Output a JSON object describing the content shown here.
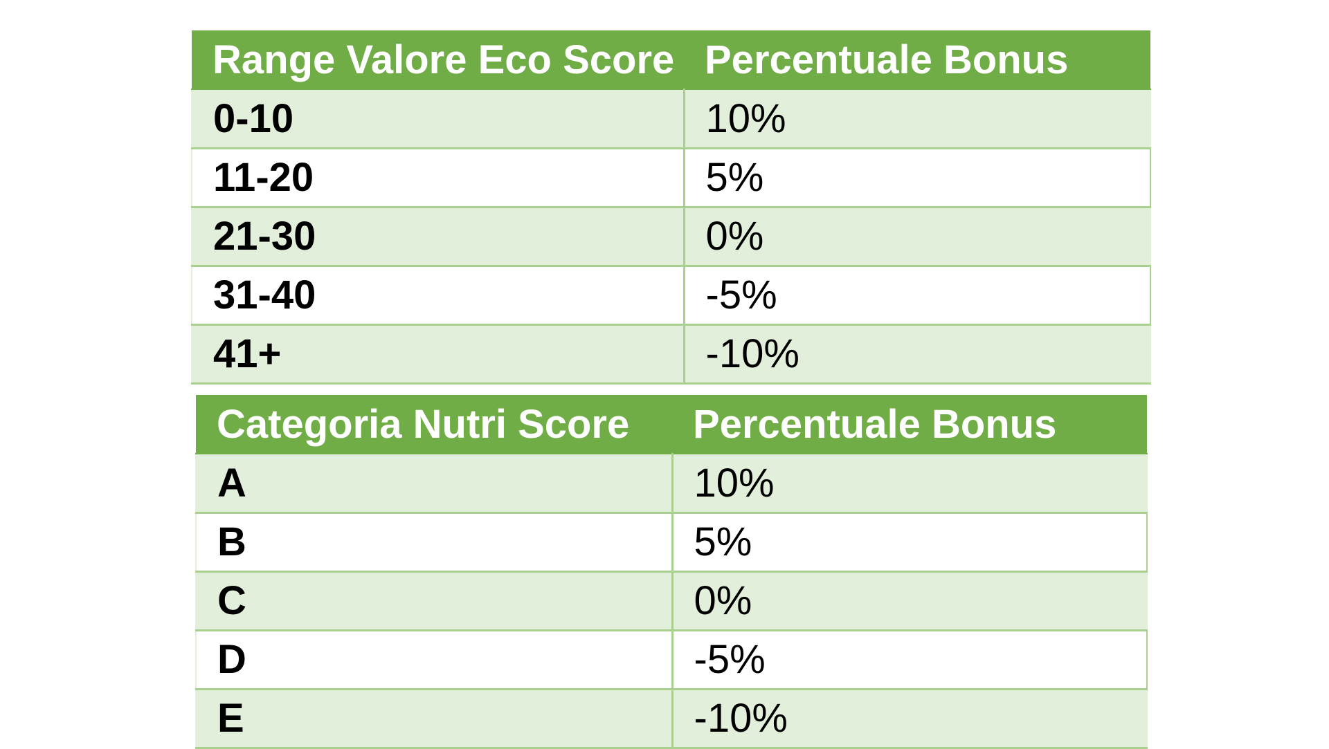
{
  "eco_score_table": {
    "headers": [
      "Range Valore Eco Score",
      "Percentuale Bonus"
    ],
    "rows": [
      [
        "0-10",
        "10%"
      ],
      [
        "11-20",
        "5%"
      ],
      [
        "21-30",
        "0%"
      ],
      [
        "31-40",
        "-5%"
      ],
      [
        "41+",
        "-10%"
      ]
    ]
  },
  "nutri_score_table": {
    "headers": [
      "Categoria Nutri Score",
      "Percentuale Bonus"
    ],
    "rows": [
      [
        "A",
        "10%"
      ],
      [
        "B",
        "5%"
      ],
      [
        "C",
        "0%"
      ],
      [
        "D",
        "-5%"
      ],
      [
        "E",
        "-10%"
      ]
    ]
  },
  "colors": {
    "header_bg": "#70ad47",
    "header_text": "#ffffff",
    "band_row_bg": "#e2efda",
    "plain_row_bg": "#ffffff",
    "grid_line": "#a9d08e"
  }
}
